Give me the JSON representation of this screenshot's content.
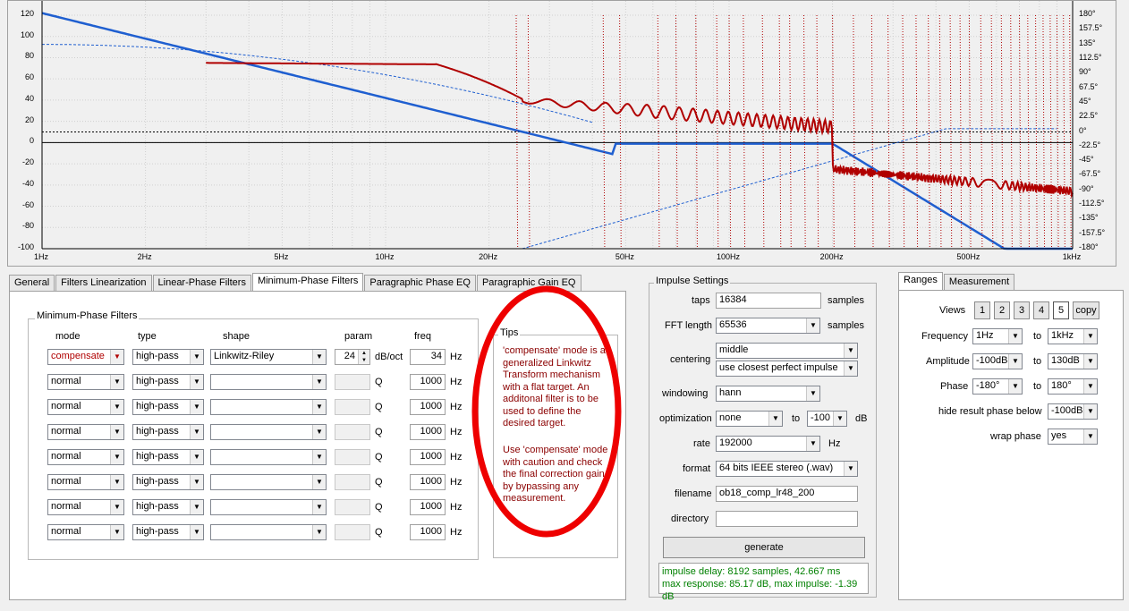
{
  "plot": {
    "y_ticks": [
      "120",
      "100",
      "80",
      "60",
      "40",
      "20",
      "0",
      "-20",
      "-40",
      "-60",
      "-80",
      "-100"
    ],
    "phase_ticks": [
      "180°",
      "157.5°",
      "135°",
      "112.5°",
      "90°",
      "67.5°",
      "45°",
      "22.5°",
      "0°",
      "-22.5°",
      "-45°",
      "-67.5°",
      "-90°",
      "-112.5°",
      "-135°",
      "-157.5°",
      "-180°"
    ],
    "x_ticks": [
      {
        "label": "1Hz",
        "f": 1
      },
      {
        "label": "2Hz",
        "f": 2
      },
      {
        "label": "5Hz",
        "f": 5
      },
      {
        "label": "10Hz",
        "f": 10
      },
      {
        "label": "20Hz",
        "f": 20
      },
      {
        "label": "50Hz",
        "f": 50
      },
      {
        "label": "100Hz",
        "f": 100
      },
      {
        "label": "200Hz",
        "f": 200
      },
      {
        "label": "500Hz",
        "f": 500
      },
      {
        "label": "1kHz",
        "f": 1000
      }
    ]
  },
  "tabs": [
    "General",
    "Filters Linearization",
    "Linear-Phase Filters",
    "Minimum-Phase Filters",
    "Paragraphic Phase EQ",
    "Paragraphic Gain EQ"
  ],
  "min_phase": {
    "title": "Minimum-Phase Filters",
    "headers": {
      "mode": "mode",
      "type": "type",
      "shape": "shape",
      "param": "param",
      "freq": "freq"
    },
    "rows": [
      {
        "mode": "compensate",
        "type": "high-pass",
        "shape": "Linkwitz-Riley",
        "param": "24",
        "param_unit": "dB/oct",
        "freq": "34",
        "freq_unit": "Hz"
      },
      {
        "mode": "normal",
        "type": "high-pass",
        "shape": "",
        "param": "",
        "param_unit": "Q",
        "freq": "1000",
        "freq_unit": "Hz"
      },
      {
        "mode": "normal",
        "type": "high-pass",
        "shape": "",
        "param": "",
        "param_unit": "Q",
        "freq": "1000",
        "freq_unit": "Hz"
      },
      {
        "mode": "normal",
        "type": "high-pass",
        "shape": "",
        "param": "",
        "param_unit": "Q",
        "freq": "1000",
        "freq_unit": "Hz"
      },
      {
        "mode": "normal",
        "type": "high-pass",
        "shape": "",
        "param": "",
        "param_unit": "Q",
        "freq": "1000",
        "freq_unit": "Hz"
      },
      {
        "mode": "normal",
        "type": "high-pass",
        "shape": "",
        "param": "",
        "param_unit": "Q",
        "freq": "1000",
        "freq_unit": "Hz"
      },
      {
        "mode": "normal",
        "type": "high-pass",
        "shape": "",
        "param": "",
        "param_unit": "Q",
        "freq": "1000",
        "freq_unit": "Hz"
      },
      {
        "mode": "normal",
        "type": "high-pass",
        "shape": "",
        "param": "",
        "param_unit": "Q",
        "freq": "1000",
        "freq_unit": "Hz"
      }
    ]
  },
  "tips": {
    "title": "Tips",
    "p1": [
      "'compensate' mode is a",
      "generalized Linkwitz",
      "Transform mechanism",
      "with a flat target. An",
      "additonal filter is to be",
      "used to define the",
      "desired target."
    ],
    "p2": [
      "Use 'compensate' mode",
      "with caution and check",
      "the final correction gain",
      "by bypassing any",
      "measurement."
    ]
  },
  "impulse": {
    "title": "Impulse Settings",
    "taps_label": "taps",
    "taps": "16384",
    "taps_unit": "samples",
    "fft_label": "FFT length",
    "fft": "65536",
    "fft_unit": "samples",
    "centering_label": "centering",
    "centering": "middle",
    "centering2": "use closest perfect impulse",
    "windowing_label": "windowing",
    "windowing": "hann",
    "optimization_label": "optimization",
    "optimization": "none",
    "opt_to": "to",
    "opt_level": "-100",
    "opt_unit": "dB",
    "rate_label": "rate",
    "rate": "192000",
    "rate_unit": "Hz",
    "format_label": "format",
    "format": "64 bits IEEE stereo (.wav)",
    "filename_label": "filename",
    "filename": "ob18_comp_lr48_200",
    "directory_label": "directory",
    "directory": "",
    "generate": "generate",
    "status1": "impulse delay: 8192 samples, 42.667 ms",
    "status2": "max response: 85.17 dB, max impulse: -1.39 dB"
  },
  "right_tabs": [
    "Ranges",
    "Measurement"
  ],
  "ranges": {
    "views_label": "Views",
    "views": [
      "1",
      "2",
      "3",
      "4",
      "5"
    ],
    "copy": "copy",
    "frequency_label": "Frequency",
    "freq_from": "1Hz",
    "freq_to": "1kHz",
    "to": "to",
    "amplitude_label": "Amplitude",
    "amp_from": "-100dB",
    "amp_to": "130dB",
    "phase_label": "Phase",
    "phase_from": "-180°",
    "phase_to": "180°",
    "hide_label": "hide result phase below",
    "hide_value": "-100dB",
    "wrap_label": "wrap phase",
    "wrap_value": "yes"
  }
}
